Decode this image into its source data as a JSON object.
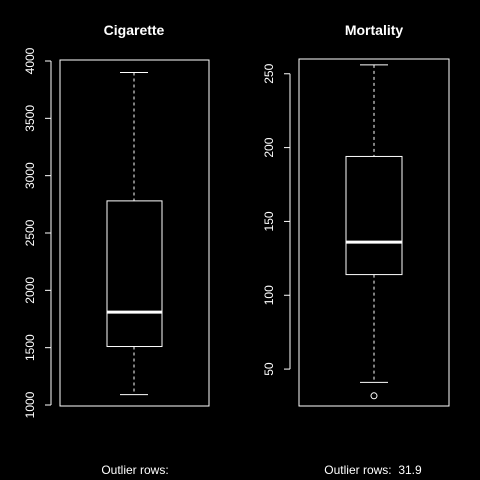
{
  "chart_data": [
    {
      "type": "box",
      "title": "Cigarette",
      "ylim": [
        1000,
        4000
      ],
      "ticks": [
        1000,
        1500,
        2000,
        2500,
        3000,
        3500,
        4000
      ],
      "stats": {
        "min": 1090,
        "q1": 1510,
        "median": 1810,
        "q3": 2780,
        "max": 3900
      },
      "outliers": [],
      "caption_label": "Outlier rows:",
      "caption_value": ""
    },
    {
      "type": "box",
      "title": "Mortality",
      "ylim": [
        25,
        260
      ],
      "ticks": [
        50,
        100,
        150,
        200,
        250
      ],
      "stats": {
        "min": 41,
        "q1": 114,
        "median": 136,
        "q3": 194,
        "max": 256
      },
      "outliers": [
        31.9
      ],
      "caption_label": "Outlier rows:",
      "caption_value": "31.9"
    }
  ],
  "colors": {
    "background": "#000000",
    "foreground": "#ffffff"
  }
}
